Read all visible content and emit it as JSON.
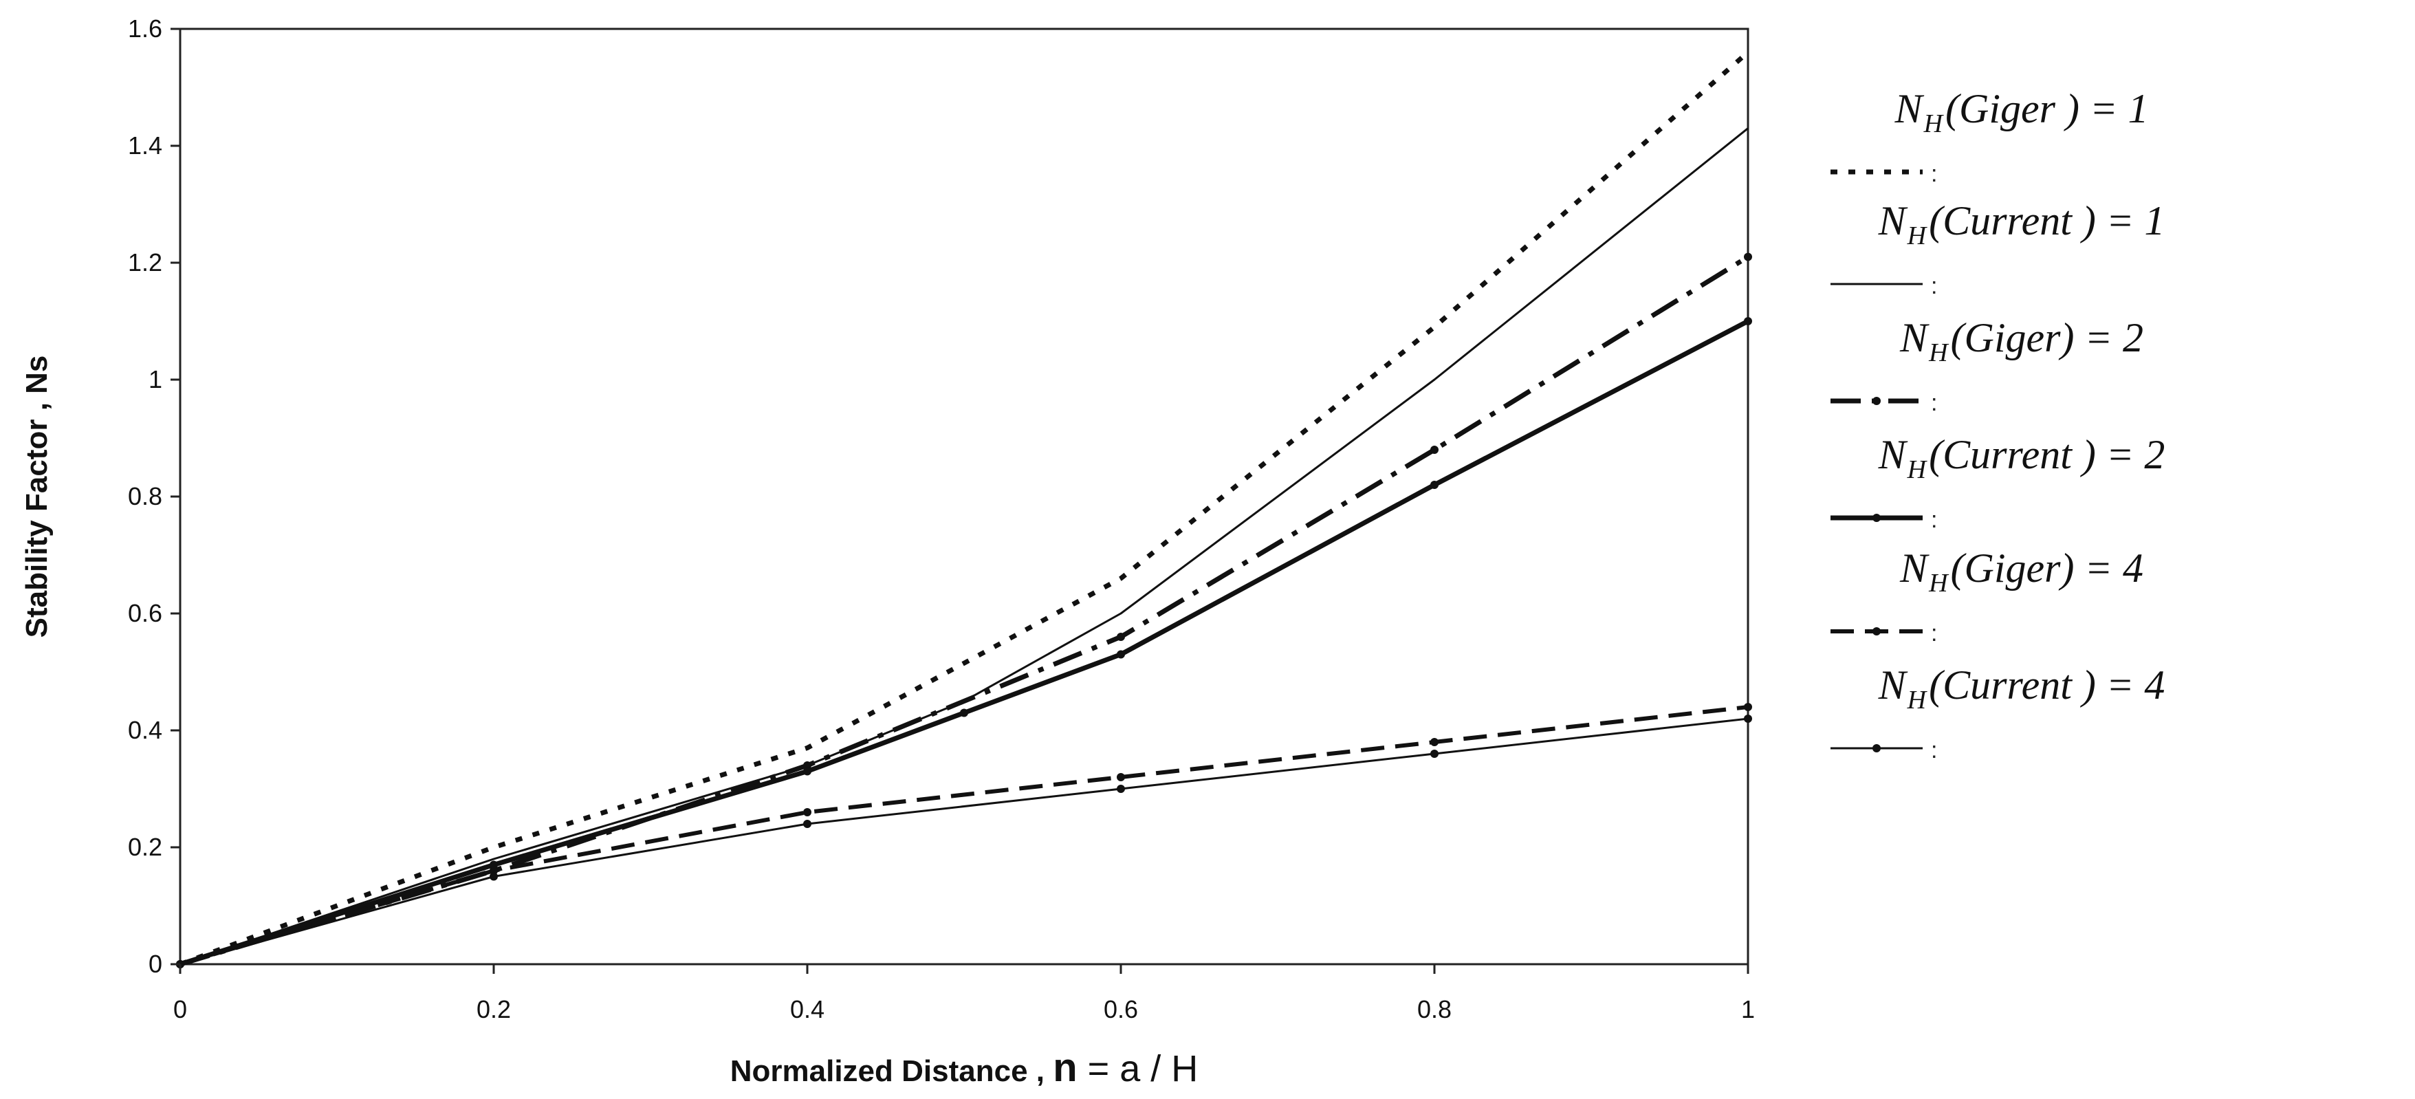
{
  "chart_data": {
    "type": "line",
    "xlabel_prefix": "Normalized Distance , ",
    "xlabel_symbol": "n",
    "xlabel_suffix": " = a / H",
    "ylabel": "Stability Factor , Ns",
    "xlim": [
      0,
      1
    ],
    "ylim": [
      0,
      1.6
    ],
    "x_ticks": [
      "0",
      "0.2",
      "0.4",
      "0.6",
      "0.8",
      "1"
    ],
    "y_ticks": [
      "0",
      "0.2",
      "0.4",
      "0.6",
      "0.8",
      "1",
      "1.2",
      "1.4",
      "1.6"
    ],
    "grid": false,
    "legend_position": "right",
    "series": [
      {
        "name": "NH(Giger) = 1",
        "legend_main_a": "N",
        "legend_sub": "H",
        "legend_main_b": "(Giger ) = 1",
        "style": "dotted",
        "color": "#111111",
        "x": [
          0,
          0.2,
          0.4,
          0.6,
          0.8,
          1.0
        ],
        "y": [
          0,
          0.2,
          0.37,
          0.66,
          1.09,
          1.56
        ]
      },
      {
        "name": "NH(Current) = 1",
        "legend_main_a": "N",
        "legend_sub": "H",
        "legend_main_b": "(Current ) = 1",
        "style": "thin-solid",
        "color": "#111111",
        "x": [
          0,
          0.2,
          0.4,
          0.5,
          0.6,
          0.8,
          1.0
        ],
        "y": [
          0,
          0.18,
          0.34,
          0.45,
          0.6,
          1.0,
          1.43
        ]
      },
      {
        "name": "NH(Giger) = 2",
        "legend_main_a": "N",
        "legend_sub": "H",
        "legend_main_b": "(Giger) = 2",
        "style": "dash-dot",
        "color": "#111111",
        "x": [
          0,
          0.2,
          0.4,
          0.6,
          0.8,
          1.0
        ],
        "y": [
          0,
          0.16,
          0.34,
          0.56,
          0.88,
          1.21
        ]
      },
      {
        "name": "NH(Current) = 2",
        "legend_main_a": "N",
        "legend_sub": "H",
        "legend_main_b": "(Current ) = 2",
        "style": "thick-solid",
        "color": "#111111",
        "x": [
          0,
          0.2,
          0.4,
          0.5,
          0.6,
          0.8,
          1.0
        ],
        "y": [
          0,
          0.17,
          0.33,
          0.43,
          0.53,
          0.82,
          1.1
        ]
      },
      {
        "name": "NH(Giger) = 4",
        "legend_main_a": "N",
        "legend_sub": "H",
        "legend_main_b": "(Giger) = 4",
        "style": "dashed",
        "color": "#111111",
        "x": [
          0,
          0.2,
          0.4,
          0.6,
          0.8,
          1.0
        ],
        "y": [
          0,
          0.16,
          0.26,
          0.32,
          0.38,
          0.44
        ]
      },
      {
        "name": "NH(Current) = 4",
        "legend_main_a": "N",
        "legend_sub": "H",
        "legend_main_b": "(Current ) = 4",
        "style": "thin-solid-markers",
        "color": "#111111",
        "x": [
          0,
          0.2,
          0.4,
          0.6,
          0.8,
          1.0
        ],
        "y": [
          0,
          0.15,
          0.24,
          0.3,
          0.36,
          0.42
        ]
      }
    ]
  }
}
